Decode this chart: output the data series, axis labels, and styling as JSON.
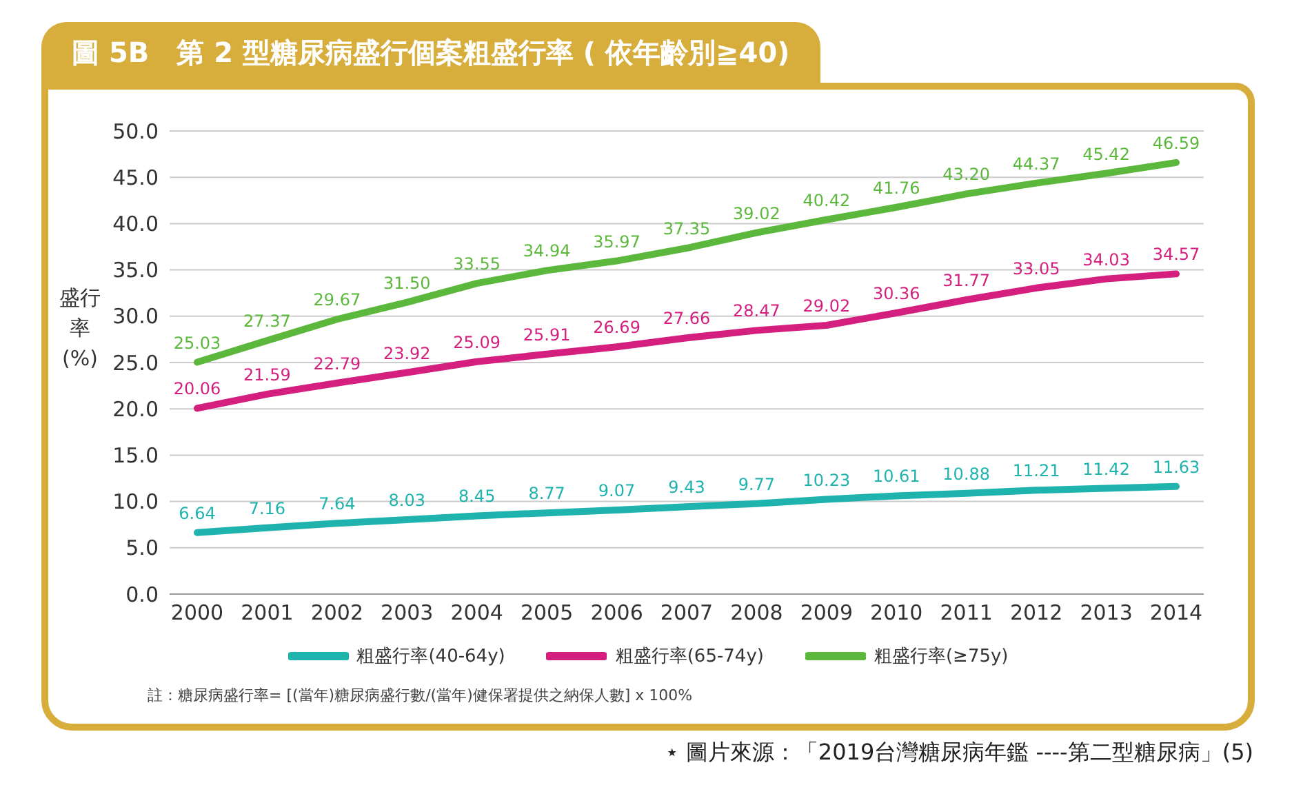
{
  "chart_data": {
    "type": "line",
    "title": "圖 5B　第 2 型糖尿病盛行個案粗盛行率 ( 依年齡別≧40)",
    "ylabel": "盛行率(%)",
    "categories": [
      "2000",
      "2001",
      "2002",
      "2003",
      "2004",
      "2005",
      "2006",
      "2007",
      "2008",
      "2009",
      "2010",
      "2011",
      "2012",
      "2013",
      "2014"
    ],
    "series": [
      {
        "name": "粗盛行率(40-64y)",
        "color": "#1fb3ae",
        "values": [
          6.64,
          7.16,
          7.64,
          8.03,
          8.45,
          8.77,
          9.07,
          9.43,
          9.77,
          10.23,
          10.61,
          10.88,
          11.21,
          11.42,
          11.63
        ],
        "value_labels": [
          "6.64",
          "7.16",
          "7.64",
          "8.03",
          "8.45",
          "8.77",
          "9.07",
          "9.43",
          "9.77",
          "10.23",
          "10.61",
          "10.88",
          "11.21",
          "11.42",
          "11.63"
        ]
      },
      {
        "name": "粗盛行率(65-74y)",
        "color": "#d41f7f",
        "values": [
          20.06,
          21.59,
          22.79,
          23.92,
          25.09,
          25.91,
          26.69,
          27.66,
          28.47,
          29.02,
          30.36,
          31.77,
          33.05,
          34.03,
          34.57
        ],
        "value_labels": [
          "20.06",
          "21.59",
          "22.79",
          "23.92",
          "25.09",
          "25.91",
          "26.69",
          "27.66",
          "28.47",
          "29.02",
          "30.36",
          "31.77",
          "33.05",
          "34.03",
          "34.57"
        ]
      },
      {
        "name": "粗盛行率(≥75y)",
        "color": "#5cb83c",
        "values": [
          25.03,
          27.37,
          29.67,
          31.5,
          33.55,
          34.94,
          35.97,
          37.35,
          39.02,
          40.42,
          41.76,
          43.2,
          44.37,
          45.42,
          46.59
        ],
        "value_labels": [
          "25.03",
          "27.37",
          "29.67",
          "31.50",
          "33.55",
          "34.94",
          "35.97",
          "37.35",
          "39.02",
          "40.42",
          "41.76",
          "43.20",
          "44.37",
          "45.42",
          "46.59"
        ]
      }
    ],
    "ylim": [
      0,
      50
    ],
    "yticks": [
      {
        "value": 0,
        "label": "0.0"
      },
      {
        "value": 5,
        "label": "5.0"
      },
      {
        "value": 10,
        "label": "10.0"
      },
      {
        "value": 15,
        "label": "15.0"
      },
      {
        "value": 20,
        "label": "20.0"
      },
      {
        "value": 25,
        "label": "25.0"
      },
      {
        "value": 30,
        "label": "30.0"
      },
      {
        "value": 35,
        "label": "35.0"
      },
      {
        "value": 40,
        "label": "40.0"
      },
      {
        "value": 45,
        "label": "45.0"
      },
      {
        "value": 50,
        "label": "50.0"
      }
    ],
    "grid": "y",
    "legend": "bottom",
    "marker": "none",
    "line_style": "solid",
    "annotations": [
      "註：糖尿病盛行率= [(當年)糖尿病盛行數/(當年)健保署提供之納保人數] x 100%",
      "⋆ 圖片來源：「2019台灣糖尿病年鑑 ----第二型糖尿病」(5)"
    ]
  }
}
